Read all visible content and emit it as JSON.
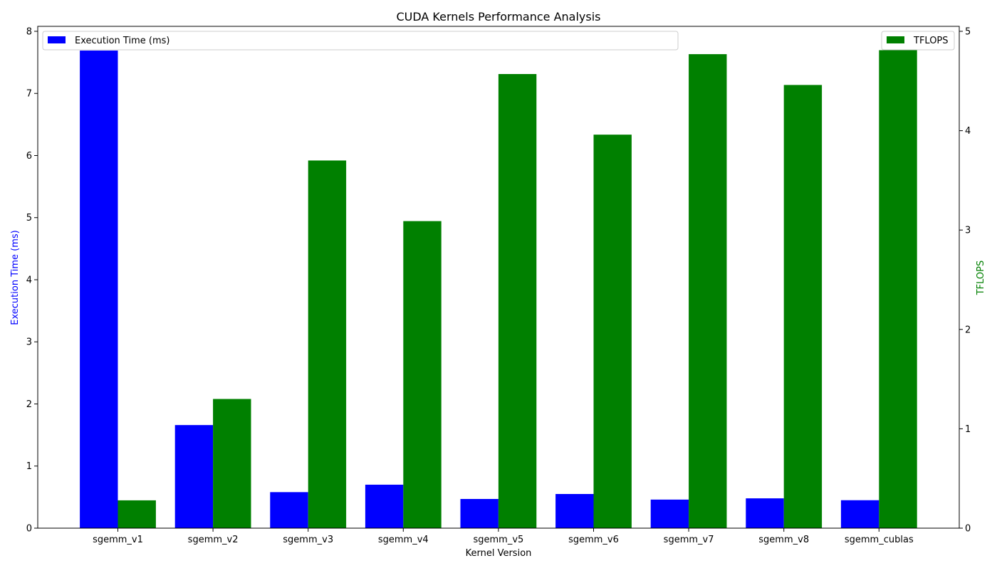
{
  "chart_data": {
    "type": "bar",
    "title": "CUDA Kernels Performance Analysis",
    "xlabel": "Kernel Version",
    "categories": [
      "sgemm_v1",
      "sgemm_v2",
      "sgemm_v3",
      "sgemm_v4",
      "sgemm_v5",
      "sgemm_v6",
      "sgemm_v7",
      "sgemm_v8",
      "sgemm_cublas"
    ],
    "series": [
      {
        "name": "Execution Time (ms)",
        "axis": "left",
        "color": "#0000ff",
        "values": [
          7.69,
          1.66,
          0.58,
          0.7,
          0.47,
          0.55,
          0.46,
          0.48,
          0.45
        ]
      },
      {
        "name": "TFLOPS",
        "axis": "right",
        "color": "#008000",
        "values": [
          0.28,
          1.3,
          3.7,
          3.09,
          4.57,
          3.96,
          4.77,
          4.46,
          4.81
        ]
      }
    ],
    "y_left": {
      "label": "Execution Time (ms)",
      "label_color": "#0000ff",
      "ylim": [
        0,
        8.08
      ],
      "ticks": [
        0,
        1,
        2,
        3,
        4,
        5,
        6,
        7,
        8
      ]
    },
    "y_right": {
      "label": "TFLOPS",
      "label_color": "#008000",
      "ylim": [
        0,
        5.05
      ],
      "ticks": [
        0,
        1,
        2,
        3,
        4,
        5
      ]
    },
    "legends": [
      {
        "label": "Execution Time (ms)",
        "placement": "upper-left"
      },
      {
        "label": "TFLOPS",
        "placement": "upper-right"
      }
    ],
    "grid": false
  }
}
